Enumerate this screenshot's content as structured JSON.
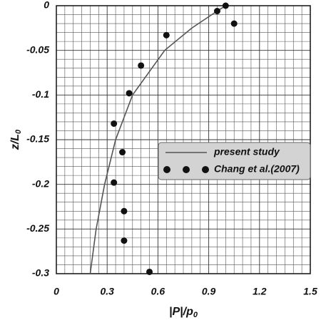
{
  "chart_data": {
    "type": "scatter-line",
    "x_label": "|P|/p",
    "x_label_sub": "0",
    "y_label": "z/L",
    "y_label_sub": "0",
    "xlim": [
      0,
      1.5
    ],
    "ylim": [
      -0.3,
      0
    ],
    "xticks": [
      0,
      0.3,
      0.6,
      0.9,
      1.2,
      1.5
    ],
    "yticks": [
      0,
      -0.05,
      -0.1,
      -0.15,
      -0.2,
      -0.25,
      -0.3
    ],
    "xminorticks": [
      0.05,
      0.1,
      0.15,
      0.2,
      0.25,
      0.35,
      0.4,
      0.45,
      0.5,
      0.55,
      0.65,
      0.7,
      0.75,
      0.8,
      0.85,
      0.95,
      1.0,
      1.05,
      1.1,
      1.15,
      1.25,
      1.3,
      1.35,
      1.4,
      1.45
    ],
    "yminorticks": [
      -0.01,
      -0.02,
      -0.03,
      -0.04,
      -0.06,
      -0.07,
      -0.08,
      -0.09,
      -0.11,
      -0.12,
      -0.13,
      -0.14,
      -0.16,
      -0.17,
      -0.18,
      -0.19,
      -0.21,
      -0.22,
      -0.23,
      -0.24,
      -0.26,
      -0.27,
      -0.28,
      -0.29
    ],
    "grid": true,
    "series": [
      {
        "name": "present study",
        "kind": "line",
        "color": "#555555",
        "x": [
          0.2,
          0.235,
          0.285,
          0.35,
          0.45,
          0.64,
          0.8,
          0.95,
          1.0
        ],
        "values": [
          -0.3,
          -0.25,
          -0.2,
          -0.15,
          -0.1,
          -0.05,
          -0.025,
          -0.006,
          0
        ]
      },
      {
        "name": "Chang et al.(2007)",
        "kind": "scatter",
        "color": "#111111",
        "x": [
          1.0,
          0.95,
          1.05,
          0.65,
          0.5,
          0.43,
          0.34,
          0.39,
          0.34,
          0.4,
          0.4,
          0.55
        ],
        "values": [
          0,
          -0.006,
          -0.02,
          -0.033,
          -0.067,
          -0.098,
          -0.132,
          -0.164,
          -0.198,
          -0.23,
          -0.263,
          -0.298
        ]
      }
    ]
  }
}
